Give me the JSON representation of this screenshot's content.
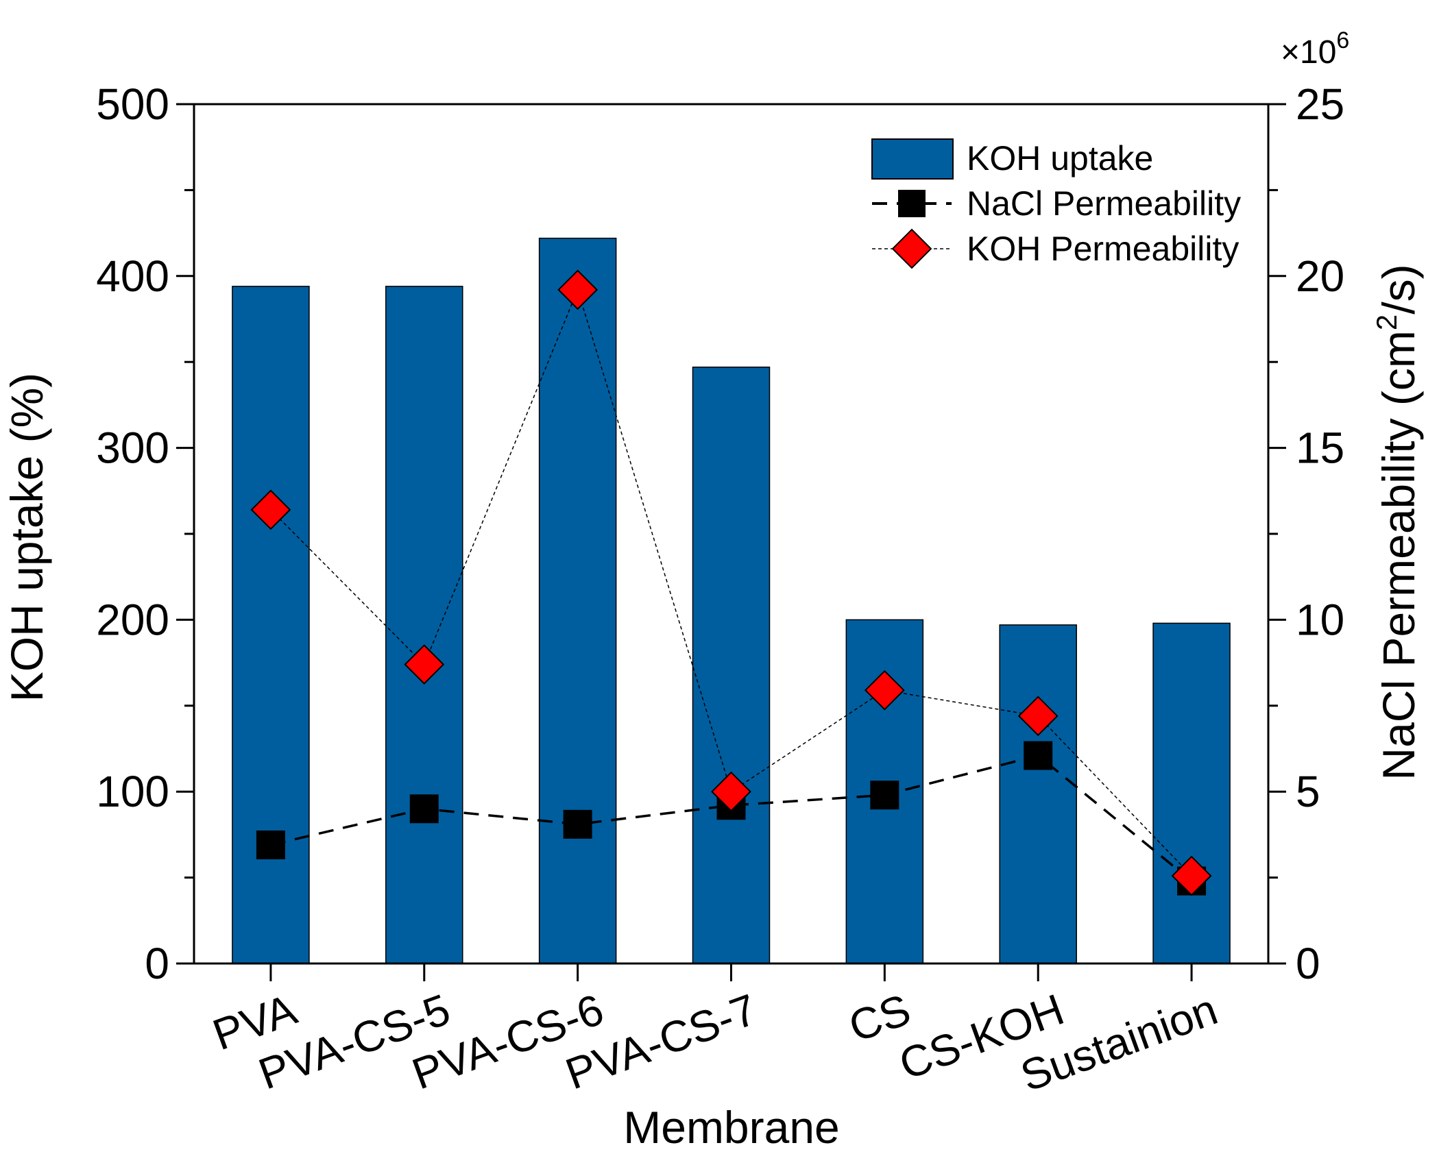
{
  "chart_data": {
    "type": "bar+line",
    "title": "",
    "xlabel": "Membrane",
    "ylabel_left": "KOH uptake (%)",
    "ylabel_right": "NaCl Permeability (cm",
    "ylabel_right_sup": "2",
    "ylabel_right_tail": "/s)",
    "right_multiplier_base": "×10",
    "right_multiplier_exp": "6",
    "categories": [
      "PVA",
      "PVA-CS-5",
      "PVA-CS-6",
      "PVA-CS-7",
      "CS",
      "CS-KOH",
      "Sustainion"
    ],
    "left_ylim": [
      0,
      500
    ],
    "left_ticks": [
      "0",
      "100",
      "200",
      "300",
      "400",
      "500"
    ],
    "right_ylim": [
      0,
      25
    ],
    "right_ticks": [
      "0",
      "5",
      "10",
      "15",
      "20",
      "25"
    ],
    "series": [
      {
        "name": "KOH uptake",
        "type": "bar",
        "axis": "left",
        "color": "#005e9e",
        "values": [
          394,
          394,
          422,
          347,
          200,
          197,
          198
        ]
      },
      {
        "name": "NaCl Permeability",
        "type": "line",
        "axis": "right",
        "marker": "square",
        "line": "dashed",
        "color": "#000000",
        "values": [
          3.45,
          4.5,
          4.05,
          4.6,
          4.9,
          6.05,
          2.4
        ]
      },
      {
        "name": "KOH Permeability",
        "type": "line",
        "axis": "right",
        "marker": "diamond",
        "line": "dotted",
        "color": "#ff0000",
        "values": [
          13.2,
          8.7,
          19.6,
          5.0,
          7.95,
          7.2,
          2.55
        ]
      }
    ],
    "legend_position": "top-right"
  }
}
